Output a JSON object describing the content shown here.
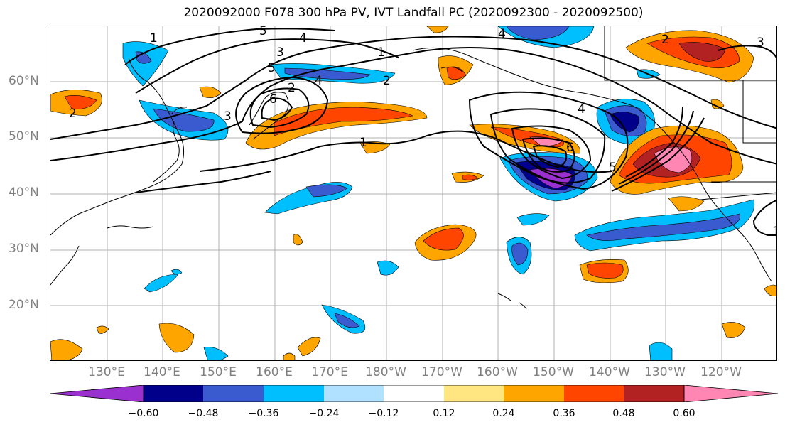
{
  "title": "2020092000 F078 300 hPa PV, IVT Landfall PC (2020092300 - 2020092500)",
  "lat_labels": [
    "60°N",
    "50°N",
    "40°N",
    "30°N",
    "20°N"
  ],
  "lon_labels": [
    "130°E",
    "140°E",
    "150°E",
    "160°E",
    "170°E",
    "180°W",
    "170°W",
    "160°W",
    "150°W",
    "140°W",
    "130°W",
    "120°W"
  ],
  "colorbar": {
    "ticks": [
      "−0.60",
      "−0.48",
      "−0.36",
      "−0.24",
      "−0.12",
      "0.12",
      "0.24",
      "0.36",
      "0.48",
      "0.60"
    ],
    "colors": [
      "#9a30d0",
      "#00008b",
      "#3a5ad0",
      "#00bfff",
      "#b0e2ff",
      "#ffffff",
      "#ffe680",
      "#ffa500",
      "#ff4500",
      "#b22222",
      "#ff85b3"
    ]
  },
  "contour_labels": [
    "5",
    "4",
    "3",
    "1",
    "2",
    "1",
    "4",
    "2",
    "4",
    "5",
    "3",
    "6",
    "1",
    "4",
    "6",
    "5",
    "2",
    "3",
    "2",
    "1"
  ]
}
